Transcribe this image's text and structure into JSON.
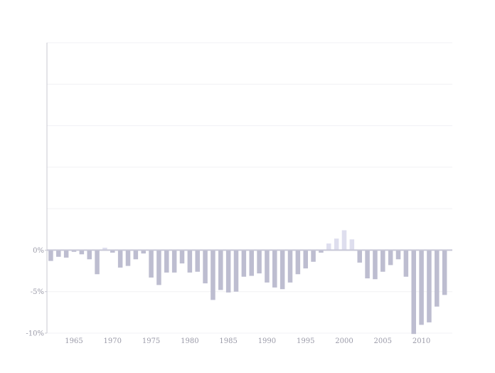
{
  "chart_data": {
    "type": "bar",
    "title": "",
    "xlabel": "",
    "ylabel": "",
    "ylim": [
      -10,
      25
    ],
    "y_ticks": [
      -10,
      -5,
      0
    ],
    "y_tick_labels": [
      "-10%",
      "-5%",
      "0%"
    ],
    "x_ticks": [
      1965,
      1970,
      1975,
      1980,
      1985,
      1990,
      1995,
      2000,
      2005,
      2010
    ],
    "x_tick_labels": [
      "1965",
      "1970",
      "1975",
      "1980",
      "1985",
      "1990",
      "1995",
      "2000",
      "2005",
      "2010"
    ],
    "grid": true,
    "colors": {
      "negative": "#bdbdd0",
      "positive": "#dedeee"
    },
    "categories": [
      1962,
      1963,
      1964,
      1965,
      1966,
      1967,
      1968,
      1969,
      1970,
      1971,
      1972,
      1973,
      1974,
      1975,
      1976,
      1977,
      1978,
      1979,
      1980,
      1981,
      1982,
      1983,
      1984,
      1985,
      1986,
      1987,
      1988,
      1989,
      1990,
      1991,
      1992,
      1993,
      1994,
      1995,
      1996,
      1997,
      1998,
      1999,
      2000,
      2001,
      2002,
      2003,
      2004,
      2005,
      2006,
      2007,
      2008,
      2009,
      2010,
      2011,
      2012,
      2013
    ],
    "values": [
      -1.3,
      -0.8,
      -0.9,
      -0.2,
      -0.5,
      -1.1,
      -2.9,
      0.3,
      -0.3,
      -2.1,
      -1.9,
      -1.1,
      -0.4,
      -3.3,
      -4.2,
      -2.7,
      -2.7,
      -1.6,
      -2.7,
      -2.6,
      -4.0,
      -6.0,
      -4.8,
      -5.1,
      -5.0,
      -3.2,
      -3.1,
      -2.8,
      -3.9,
      -4.5,
      -4.7,
      -3.9,
      -2.9,
      -2.2,
      -1.4,
      -0.3,
      0.8,
      1.4,
      2.4,
      1.3,
      -1.5,
      -3.4,
      -3.5,
      -2.6,
      -1.8,
      -1.1,
      -3.2,
      -10.1,
      -9.0,
      -8.7,
      -6.8,
      -5.4
    ]
  }
}
